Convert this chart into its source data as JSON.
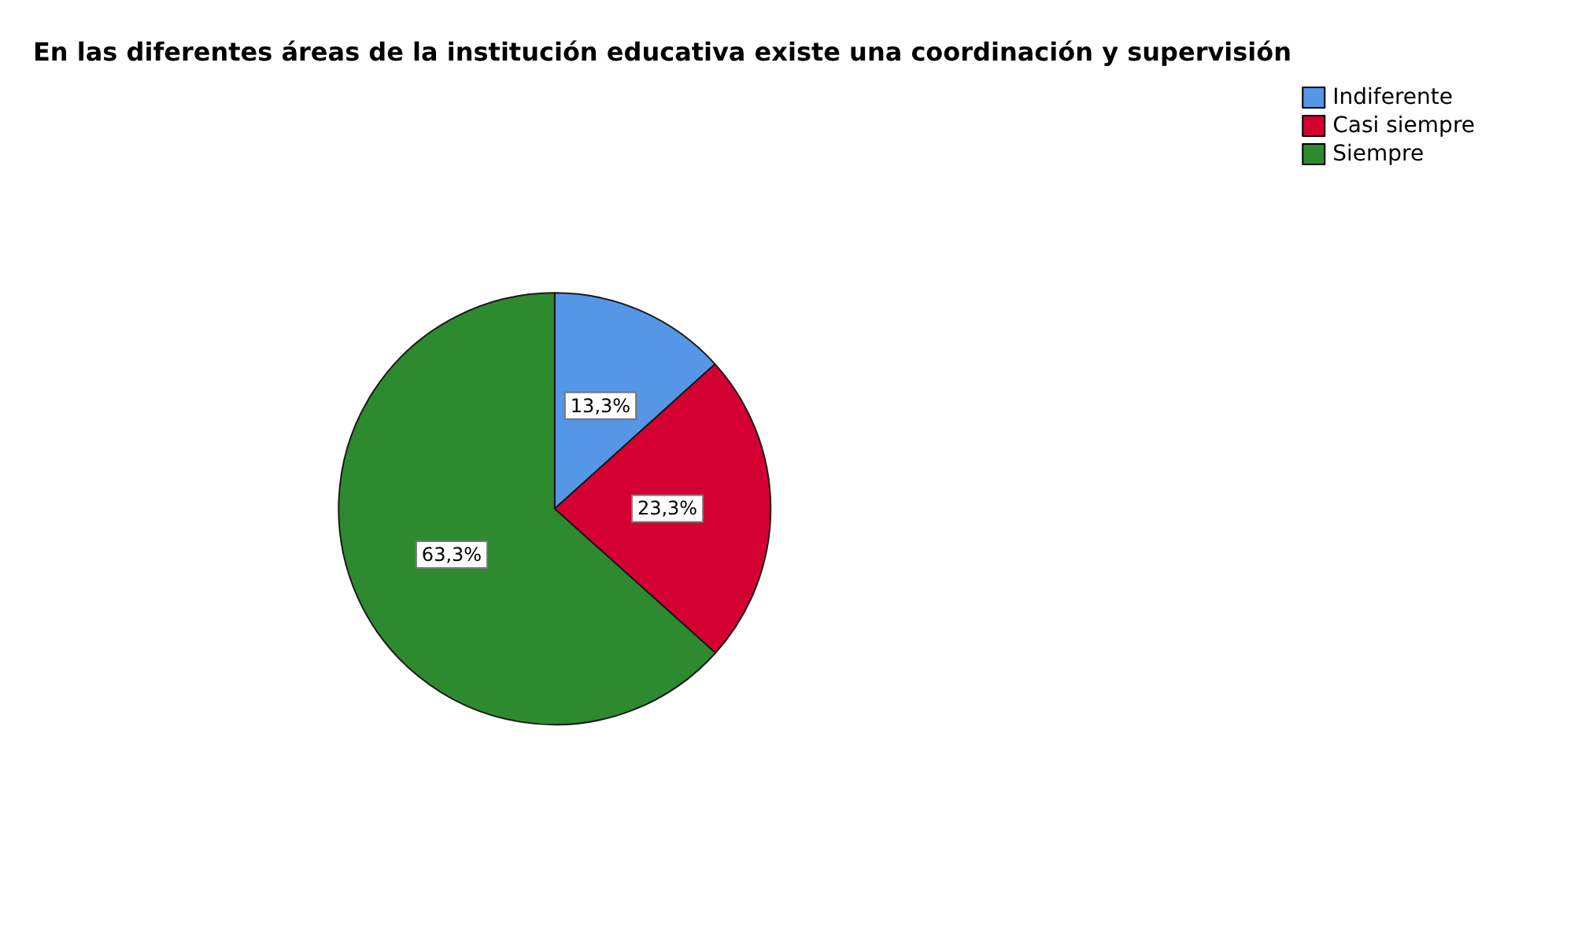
{
  "chart_data": {
    "type": "pie",
    "title": "En las diferentes áreas de la institución educativa existe una coordinación y supervisión",
    "categories": [
      "Indiferente",
      "Casi siempre",
      "Siempre"
    ],
    "values": [
      13.3,
      23.3,
      63.3
    ],
    "value_labels": [
      "13,3%",
      "23,3%",
      "63,3%"
    ],
    "colors": [
      "#5596e6",
      "#d50032",
      "#2e8a2e"
    ],
    "legend": "top right"
  }
}
